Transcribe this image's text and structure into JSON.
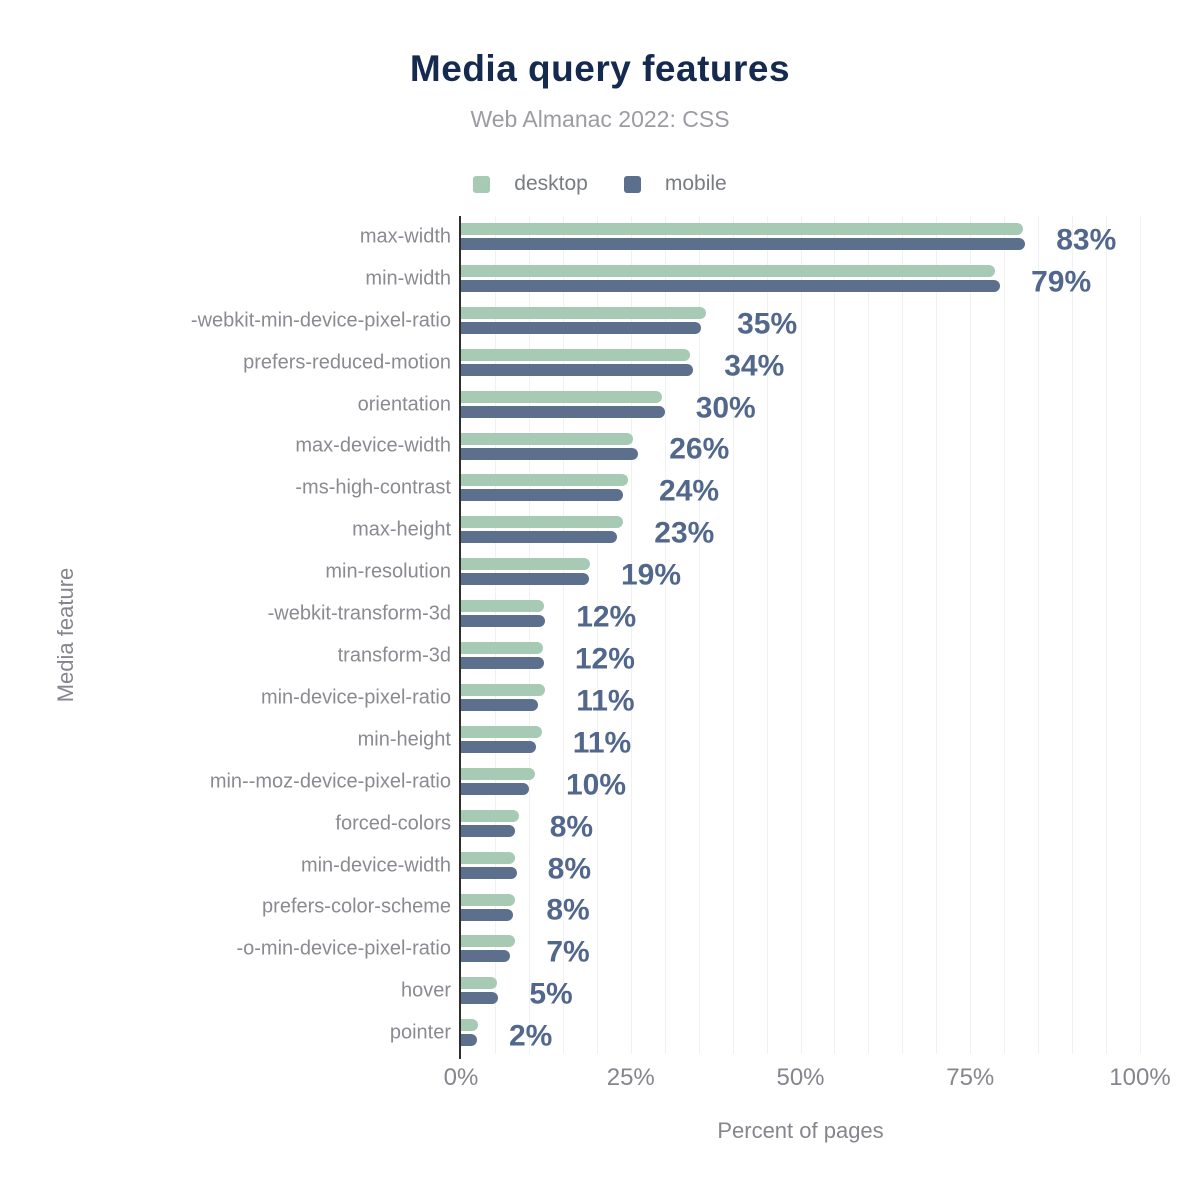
{
  "title": "Media query features",
  "subtitle": "Web Almanac 2022: CSS",
  "legend": {
    "desktop": {
      "label": "desktop",
      "color": "#a6cab4"
    },
    "mobile": {
      "label": "mobile",
      "color": "#5c6f8d"
    }
  },
  "colors": {
    "title": "#152a4e",
    "subtitle": "#9b9ca2",
    "category_label": "#8a8b90",
    "value_label": "#52678c",
    "axis_line": "#2e2e2e",
    "tick_label": "#85868c",
    "gridline": "#f1f1f4",
    "desktop_bar": "#a6cab4",
    "mobile_bar": "#5c6f8d",
    "background": "#ffffff"
  },
  "chart_data": {
    "type": "bar",
    "orientation": "horizontal",
    "title": "Media query features",
    "subtitle": "Web Almanac 2022: CSS",
    "xlabel": "Percent of pages",
    "ylabel": "Media feature",
    "xlim": [
      0,
      100
    ],
    "grid": true,
    "grid_step": 5,
    "legend_position": "top",
    "categories": [
      "max-width",
      "min-width",
      "-webkit-min-device-pixel-ratio",
      "prefers-reduced-motion",
      "orientation",
      "max-device-width",
      "-ms-high-contrast",
      "max-height",
      "min-resolution",
      "-webkit-transform-3d",
      "transform-3d",
      "min-device-pixel-ratio",
      "min-height",
      "min--moz-device-pixel-ratio",
      "forced-colors",
      "min-device-width",
      "prefers-color-scheme",
      "-o-min-device-pixel-ratio",
      "hover",
      "pointer"
    ],
    "series": [
      {
        "name": "desktop",
        "color": "#a6cab4",
        "values": [
          82.8,
          78.6,
          36.1,
          33.7,
          29.6,
          25.3,
          24.6,
          23.9,
          19.0,
          12.2,
          12.1,
          12.4,
          11.9,
          10.9,
          8.5,
          8.0,
          8.0,
          8.0,
          5.3,
          2.5
        ]
      },
      {
        "name": "mobile",
        "color": "#5c6f8d",
        "values": [
          83.1,
          79.4,
          35.3,
          34.2,
          30.0,
          26.1,
          23.9,
          23.0,
          18.9,
          12.4,
          12.2,
          11.3,
          11.0,
          10.0,
          8.0,
          8.2,
          7.7,
          7.2,
          5.5,
          2.3
        ]
      }
    ],
    "value_labels": [
      "83%",
      "79%",
      "35%",
      "34%",
      "30%",
      "26%",
      "24%",
      "23%",
      "19%",
      "12%",
      "12%",
      "11%",
      "11%",
      "10%",
      "8%",
      "8%",
      "8%",
      "7%",
      "5%",
      "2%"
    ],
    "xticks": [
      {
        "value": 0,
        "label": "0%"
      },
      {
        "value": 25,
        "label": "25%"
      },
      {
        "value": 50,
        "label": "50%"
      },
      {
        "value": 75,
        "label": "75%"
      },
      {
        "value": 100,
        "label": "100%"
      }
    ]
  }
}
